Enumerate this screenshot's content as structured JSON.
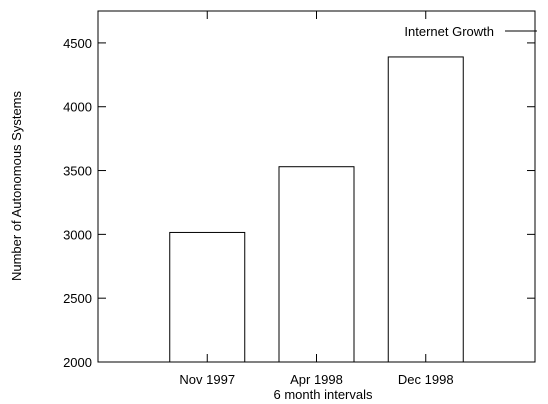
{
  "chart_data": {
    "type": "bar",
    "categories": [
      "Nov 1997",
      "Apr 1998",
      "Dec 1998"
    ],
    "series": [
      {
        "name": "Internet Growth",
        "values": [
          3015,
          3530,
          4390
        ]
      }
    ],
    "title": "",
    "xlabel": "6 month intervals",
    "ylabel": "Number of Autonomous Systems",
    "ylim": [
      2000,
      4750
    ],
    "yticks": [
      "2000",
      "2500",
      "3000",
      "3500",
      "4000",
      "4500"
    ],
    "grid": false,
    "legend_position": "top-right"
  }
}
